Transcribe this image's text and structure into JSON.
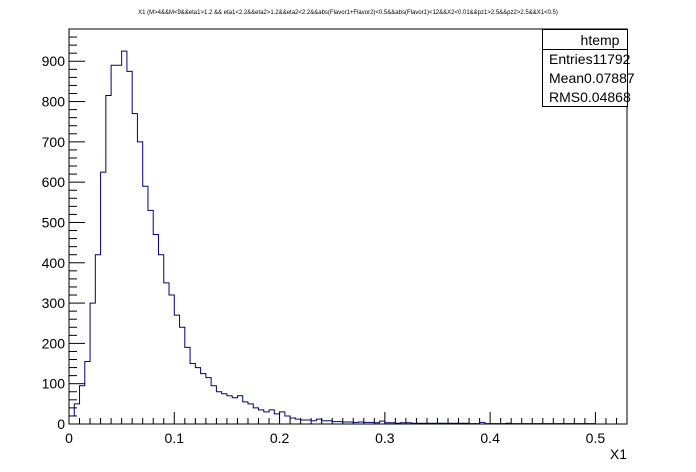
{
  "title": "X1 (M>4&&M<9&&eta1>1.2 && eta1<2.2&&eta2>1.2&&eta2<2.2&&abs(Flavor1+Flavor2)<0.5&&abs(Flavor1)<12&&X2<0.01&&pz1>2.5&&pz2>2.5&&X1<0.5)",
  "stats": {
    "name": "htemp",
    "entries_label": "Entries",
    "entries_value": "11792",
    "mean_label": "Mean",
    "mean_value": "0.07887",
    "rms_label": "RMS",
    "rms_value": "0.04868"
  },
  "colors": {
    "histogram_line": "#00007f",
    "axis": "#000000",
    "background": "#ffffff"
  },
  "chart_data": {
    "type": "bar",
    "title": "X1 (M>4&&M<9&&eta1>1.2 && eta1<2.2&&eta2>1.2&&eta2<2.2&&abs(Flavor1+Flavor2)<0.5&&abs(Flavor1)<12&&X2<0.01&&pz1>2.5&&pz2>2.5&&X1<0.5)",
    "xlabel": "X1",
    "ylabel": "",
    "xlim": [
      0,
      0.53
    ],
    "ylim": [
      0,
      980
    ],
    "bin_width": 0.005,
    "x_ticks": [
      0,
      0.1,
      0.2,
      0.3,
      0.4,
      0.5
    ],
    "x_tick_labels": [
      "0",
      "0.1",
      "0.2",
      "0.3",
      "0.4",
      "0.5"
    ],
    "y_ticks": [
      0,
      100,
      200,
      300,
      400,
      500,
      600,
      700,
      800,
      900
    ],
    "y_tick_labels": [
      "0",
      "100",
      "200",
      "300",
      "400",
      "500",
      "600",
      "700",
      "800",
      "900"
    ],
    "grid": false,
    "legend": "top-right",
    "values": [
      20,
      50,
      95,
      155,
      300,
      420,
      625,
      815,
      890,
      890,
      925,
      875,
      770,
      700,
      590,
      530,
      470,
      420,
      350,
      320,
      270,
      240,
      190,
      150,
      140,
      125,
      115,
      95,
      80,
      75,
      70,
      65,
      70,
      55,
      50,
      40,
      35,
      30,
      35,
      25,
      30,
      20,
      15,
      12,
      10,
      10,
      8,
      12,
      8,
      8,
      6,
      6,
      5,
      5,
      4,
      5,
      4,
      4,
      3,
      7,
      3,
      3,
      2,
      3,
      3,
      2,
      2,
      2,
      2,
      2,
      2,
      2,
      2,
      2,
      2,
      2,
      1,
      1,
      4,
      1,
      1,
      1,
      1,
      2,
      1,
      1,
      1,
      1,
      1,
      1,
      1,
      1,
      1,
      1,
      1,
      1,
      1,
      1,
      1,
      1
    ]
  }
}
